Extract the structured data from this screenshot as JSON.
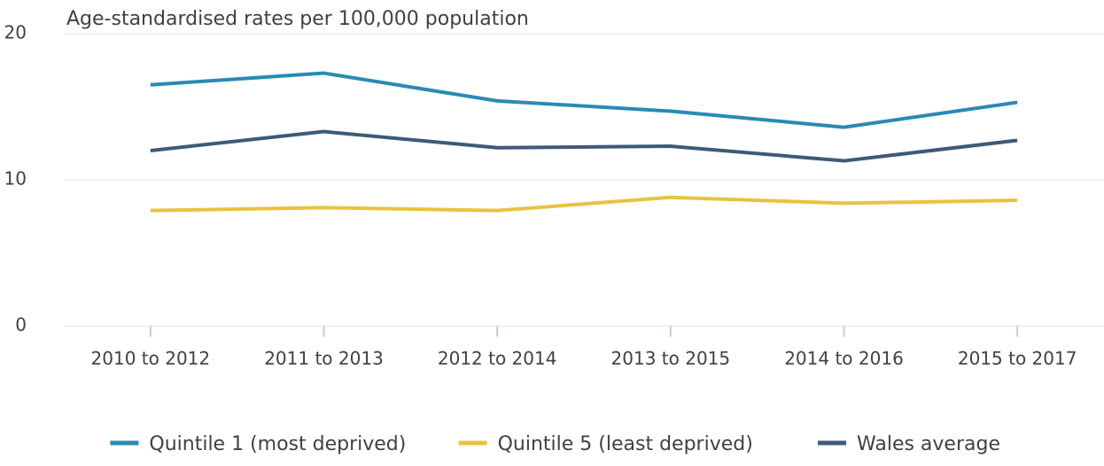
{
  "chart_data": {
    "type": "line",
    "title": "Age-standardised rates per 100,000 population",
    "categories": [
      "2010 to 2012",
      "2011 to 2013",
      "2012 to 2014",
      "2013 to 2015",
      "2014 to 2016",
      "2015 to 2017"
    ],
    "series": [
      {
        "name": "Quintile 1 (most deprived)",
        "color": "#2a8ab4",
        "values": [
          16.5,
          17.3,
          15.4,
          14.7,
          13.6,
          15.3
        ]
      },
      {
        "name": "Quintile 5 (least deprived)",
        "color": "#e8c33f",
        "values": [
          7.9,
          8.1,
          7.9,
          8.8,
          8.4,
          8.6
        ]
      },
      {
        "name": "Wales average",
        "color": "#3d5a78",
        "values": [
          12.0,
          13.3,
          12.2,
          12.3,
          11.3,
          12.7
        ]
      }
    ],
    "ylim": [
      0,
      20
    ],
    "yticks": [
      0,
      10,
      20
    ],
    "grid": true
  }
}
